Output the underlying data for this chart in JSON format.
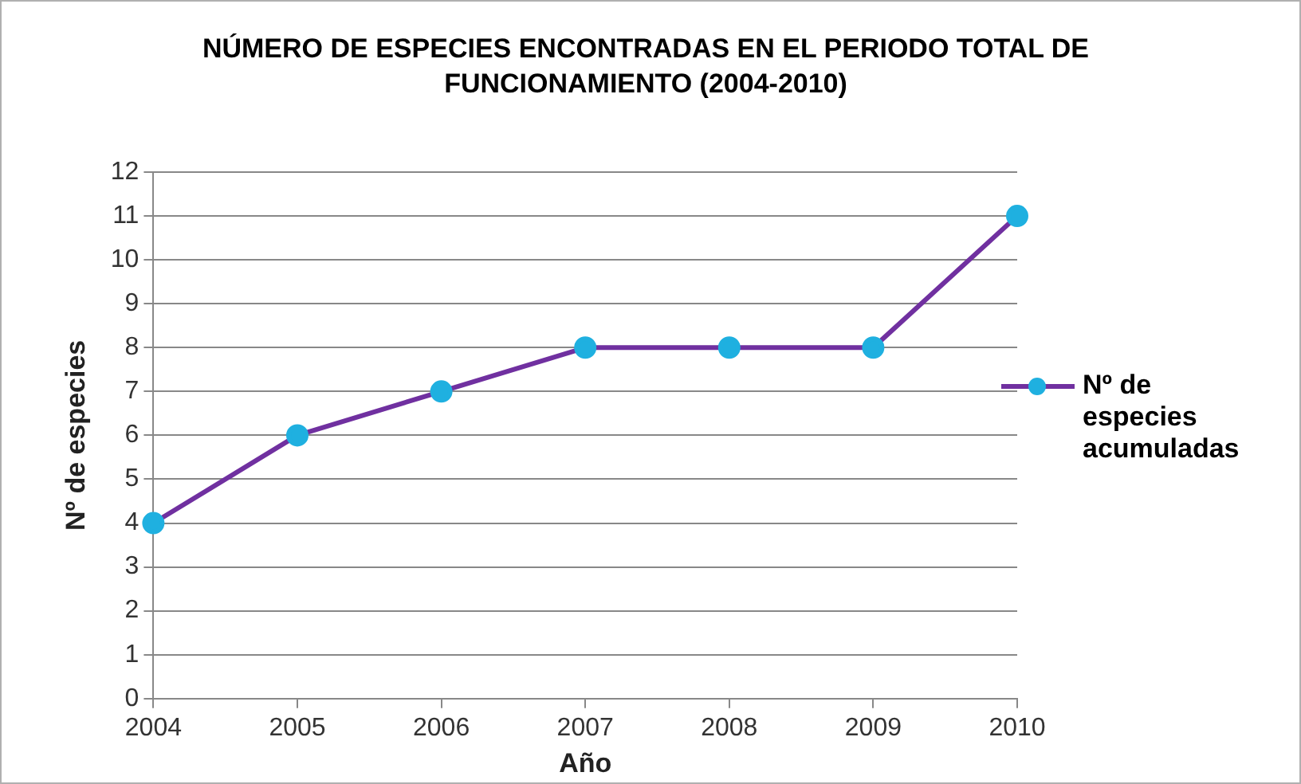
{
  "chart_data": {
    "type": "line",
    "title": "NÚMERO DE ESPECIES ENCONTRADAS EN EL PERIODO TOTAL DE FUNCIONAMIENTO (2004-2010)",
    "xlabel": "Año",
    "ylabel": "Nº de especies",
    "categories": [
      "2004",
      "2005",
      "2006",
      "2007",
      "2008",
      "2009",
      "2010"
    ],
    "series": [
      {
        "name": "Nº de especies acumuladas",
        "color": "#7030a0",
        "colors": [
          "#1fb0e0",
          "#1fb0e0",
          "#1fb0e0",
          "#1fb0e0",
          "#1fb0e0",
          "#1fb0e0",
          "#1fb0e0"
        ],
        "values": [
          4,
          6,
          7,
          8,
          8,
          8,
          11
        ]
      }
    ],
    "ylim": [
      0,
      12
    ],
    "yticks": [
      0,
      1,
      2,
      3,
      4,
      5,
      6,
      7,
      8,
      9,
      10,
      11,
      12
    ],
    "grid": "y",
    "legend": "right",
    "marker": "circle",
    "line_style": "solid"
  }
}
